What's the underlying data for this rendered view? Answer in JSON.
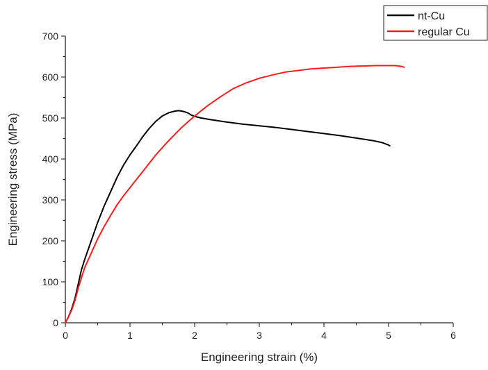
{
  "chart_data": {
    "type": "line",
    "title": "",
    "xlabel": "Engineering strain (%)",
    "ylabel": "Engineering stress (MPa)",
    "xlim": [
      0,
      6
    ],
    "ylim": [
      0,
      700
    ],
    "xticks": [
      0,
      1,
      2,
      3,
      4,
      5,
      6
    ],
    "yticks": [
      0,
      100,
      200,
      300,
      400,
      500,
      600,
      700
    ],
    "xtick_labels": [
      "0",
      "1",
      "2",
      "3",
      "4",
      "5",
      "6"
    ],
    "ytick_labels": [
      "0",
      "100",
      "200",
      "300",
      "400",
      "500",
      "600",
      "700"
    ],
    "grid": false,
    "legend_position": "top-right",
    "series": [
      {
        "name": "nt-Cu",
        "color": "#000000",
        "x": [
          0,
          0.05,
          0.1,
          0.15,
          0.2,
          0.25,
          0.3,
          0.4,
          0.5,
          0.6,
          0.7,
          0.8,
          0.9,
          1.0,
          1.1,
          1.2,
          1.3,
          1.4,
          1.5,
          1.6,
          1.7,
          1.75,
          1.8,
          1.85,
          1.9,
          1.95,
          2.0,
          2.1,
          2.25,
          2.5,
          2.75,
          3.0,
          3.25,
          3.5,
          3.75,
          4.0,
          4.25,
          4.5,
          4.75,
          4.9,
          5.0,
          5.02
        ],
        "y": [
          0,
          15,
          35,
          60,
          95,
          130,
          155,
          200,
          245,
          285,
          320,
          355,
          385,
          410,
          432,
          455,
          475,
          492,
          505,
          513,
          517,
          518,
          517,
          515,
          512,
          507,
          504,
          500,
          496,
          490,
          485,
          481,
          477,
          472,
          467,
          462,
          457,
          451,
          445,
          440,
          434,
          432
        ]
      },
      {
        "name": "regular Cu",
        "color": "#ff1a1a",
        "x": [
          0,
          0.05,
          0.1,
          0.15,
          0.2,
          0.25,
          0.3,
          0.4,
          0.5,
          0.6,
          0.7,
          0.8,
          0.9,
          1.0,
          1.2,
          1.4,
          1.6,
          1.8,
          2.0,
          2.2,
          2.4,
          2.6,
          2.8,
          3.0,
          3.2,
          3.4,
          3.6,
          3.8,
          4.0,
          4.2,
          4.4,
          4.6,
          4.8,
          5.0,
          5.1,
          5.2,
          5.24
        ],
        "y": [
          0,
          15,
          32,
          55,
          85,
          110,
          135,
          170,
          205,
          235,
          262,
          288,
          310,
          330,
          370,
          410,
          445,
          477,
          505,
          530,
          552,
          572,
          586,
          597,
          605,
          612,
          616,
          620,
          622,
          624,
          626,
          627,
          628,
          628,
          628,
          626,
          624
        ]
      }
    ]
  }
}
